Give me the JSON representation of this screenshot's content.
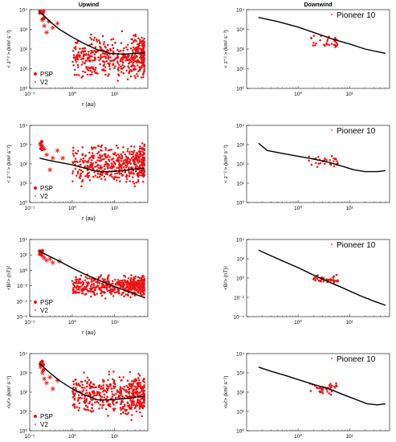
{
  "colors": {
    "data": "#ee1111",
    "model": "#000000"
  },
  "columns": {
    "left_title": "Upwind",
    "right_title": "Downwind"
  },
  "chart_data": [
    {
      "id": "upwind-zplus",
      "type": "scatter",
      "title": "Upwind",
      "xlabel": "r (au)",
      "ylabel": "< z⁺² > (km² s⁻²)",
      "xscale": "log",
      "yscale": "log",
      "xlim": [
        0.1,
        60
      ],
      "ylim": [
        1,
        10000
      ],
      "xticks": [
        {
          "v": 0.1,
          "label": "10⁻¹"
        },
        {
          "v": 1,
          "label": "10⁰"
        },
        {
          "v": 10,
          "label": "10¹"
        }
      ],
      "yticks": [
        {
          "v": 1,
          "label": "10⁰"
        },
        {
          "v": 10,
          "label": "10¹"
        },
        {
          "v": 100,
          "label": "10²"
        },
        {
          "v": 1000,
          "label": "10³"
        },
        {
          "v": 10000,
          "label": "10⁴"
        }
      ],
      "legend": {
        "placement": "bottom-left",
        "entries": [
          "PSP",
          "V2"
        ]
      },
      "model_curve": [
        [
          0.17,
          8000
        ],
        [
          0.3,
          2500
        ],
        [
          0.5,
          1000
        ],
        [
          1,
          400
        ],
        [
          2,
          180
        ],
        [
          4,
          90
        ],
        [
          8,
          60
        ],
        [
          16,
          55
        ],
        [
          30,
          60
        ],
        [
          50,
          65
        ]
      ],
      "psp": {
        "r_range": [
          0.17,
          0.22
        ],
        "y_range": [
          3000,
          10000
        ],
        "count": 6
      },
      "v2": [
        [
          0.2,
          3000
        ],
        [
          0.22,
          1500
        ],
        [
          0.25,
          700
        ],
        [
          0.28,
          2500
        ],
        [
          0.35,
          1200
        ],
        [
          0.45,
          2000
        ]
      ],
      "scatter_cloud": {
        "r_range": [
          1,
          50
        ],
        "y_range": [
          1,
          1500
        ],
        "count": 500
      }
    },
    {
      "id": "downwind-zplus",
      "type": "scatter",
      "title": "Downwind",
      "xlabel": "",
      "ylabel": "< z⁺² > (km² s⁻²)",
      "xscale": "log",
      "yscale": "log",
      "xlim": [
        0.1,
        60
      ],
      "ylim": [
        1,
        10000
      ],
      "xticks": [
        {
          "v": 1,
          "label": "10⁰"
        },
        {
          "v": 10,
          "label": "10¹"
        }
      ],
      "yticks": [
        {
          "v": 1,
          "label": "10⁰"
        },
        {
          "v": 10,
          "label": "10¹"
        },
        {
          "v": 100,
          "label": "10²"
        },
        {
          "v": 1000,
          "label": "10³"
        },
        {
          "v": 10000,
          "label": "10⁴"
        }
      ],
      "legend": {
        "placement": "top-right",
        "entries": [
          "Pioneer 10"
        ]
      },
      "model_curve": [
        [
          0.17,
          4000
        ],
        [
          0.4,
          2500
        ],
        [
          1,
          1300
        ],
        [
          2,
          700
        ],
        [
          5,
          300
        ],
        [
          10,
          180
        ],
        [
          20,
          100
        ],
        [
          50,
          60
        ]
      ],
      "scatter_cloud": {
        "r_range": [
          1.5,
          6
        ],
        "y_range": [
          60,
          700
        ],
        "count": 35
      }
    },
    {
      "id": "upwind-zminus",
      "type": "scatter",
      "title": "",
      "xlabel": "r (au)",
      "ylabel": "< z⁻² > (km² s⁻²)",
      "xscale": "log",
      "yscale": "log",
      "xlim": [
        0.1,
        60
      ],
      "ylim": [
        1,
        10000
      ],
      "xticks": [
        {
          "v": 0.1,
          "label": "10⁻¹"
        },
        {
          "v": 1,
          "label": "10⁰"
        },
        {
          "v": 10,
          "label": "10¹"
        }
      ],
      "yticks": [
        {
          "v": 1,
          "label": "10⁰"
        },
        {
          "v": 10,
          "label": "10¹"
        },
        {
          "v": 100,
          "label": "10²"
        },
        {
          "v": 1000,
          "label": "10³"
        },
        {
          "v": 10000,
          "label": "10⁴"
        }
      ],
      "legend": {
        "placement": "bottom-left",
        "entries": [
          "PSP",
          "V2"
        ]
      },
      "model_curve": [
        [
          0.17,
          200
        ],
        [
          0.3,
          150
        ],
        [
          0.5,
          120
        ],
        [
          1,
          90
        ],
        [
          2,
          60
        ],
        [
          4,
          40
        ],
        [
          8,
          40
        ],
        [
          16,
          45
        ],
        [
          30,
          55
        ],
        [
          50,
          60
        ]
      ],
      "psp": {
        "r_range": [
          0.17,
          0.2
        ],
        "y_range": [
          300,
          1500
        ],
        "count": 5
      },
      "v2": [
        [
          0.18,
          1000
        ],
        [
          0.2,
          800
        ],
        [
          0.22,
          600
        ],
        [
          0.25,
          300
        ],
        [
          0.3,
          50
        ],
        [
          0.35,
          200
        ],
        [
          0.45,
          500
        ],
        [
          0.6,
          200
        ]
      ],
      "scatter_cloud": {
        "r_range": [
          1,
          50
        ],
        "y_range": [
          3,
          3000
        ],
        "count": 500
      }
    },
    {
      "id": "downwind-zminus",
      "type": "scatter",
      "title": "",
      "xlabel": "",
      "ylabel": "< z⁻² > (km² s⁻²)",
      "xscale": "log",
      "yscale": "log",
      "xlim": [
        0.1,
        60
      ],
      "ylim": [
        1,
        10000
      ],
      "xticks": [
        {
          "v": 1,
          "label": "10⁰"
        },
        {
          "v": 10,
          "label": "10¹"
        }
      ],
      "yticks": [
        {
          "v": 1,
          "label": "10⁰"
        },
        {
          "v": 10,
          "label": "10¹"
        },
        {
          "v": 100,
          "label": "10²"
        },
        {
          "v": 1000,
          "label": "10³"
        },
        {
          "v": 10000,
          "label": "10⁴"
        }
      ],
      "legend": {
        "placement": "top-right",
        "entries": [
          "Pioneer 10"
        ]
      },
      "model_curve": [
        [
          0.17,
          1200
        ],
        [
          0.25,
          500
        ],
        [
          0.5,
          350
        ],
        [
          1,
          250
        ],
        [
          2,
          180
        ],
        [
          4,
          120
        ],
        [
          8,
          70
        ],
        [
          12,
          50
        ],
        [
          20,
          40
        ],
        [
          35,
          40
        ],
        [
          50,
          45
        ]
      ],
      "scatter_cloud": {
        "r_range": [
          1.5,
          6
        ],
        "y_range": [
          50,
          400
        ],
        "count": 35
      }
    },
    {
      "id": "upwind-b2",
      "type": "scatter",
      "title": "",
      "xlabel": "r (au)",
      "ylabel": "<B²> (nT)²",
      "xscale": "log",
      "yscale": "log",
      "xlim": [
        0.1,
        60
      ],
      "ylim": [
        1e-06,
        10000
      ],
      "xticks": [
        {
          "v": 0.1,
          "label": "10⁻¹"
        },
        {
          "v": 1,
          "label": "10⁰"
        },
        {
          "v": 10,
          "label": "10¹"
        }
      ],
      "yticks": [
        {
          "v": 1e-06,
          "label": "10⁻⁶"
        },
        {
          "v": 0.0001,
          "label": "10⁻⁴"
        },
        {
          "v": 0.01,
          "label": "10⁻²"
        },
        {
          "v": 1,
          "label": "10⁰"
        },
        {
          "v": 100,
          "label": "10²"
        },
        {
          "v": 10000,
          "label": "10⁴"
        }
      ],
      "legend": {
        "placement": "bottom-left",
        "entries": [
          "PSP",
          "V2"
        ]
      },
      "model_curve": [
        [
          0.17,
          300
        ],
        [
          0.3,
          60
        ],
        [
          0.5,
          15
        ],
        [
          1,
          2
        ],
        [
          2,
          0.3
        ],
        [
          4,
          0.06
        ],
        [
          8,
          0.012
        ],
        [
          16,
          0.003
        ],
        [
          30,
          0.0008
        ],
        [
          50,
          0.0003
        ]
      ],
      "psp": {
        "r_range": [
          0.17,
          0.2
        ],
        "y_range": [
          100,
          500
        ],
        "count": 5
      },
      "v2": [
        [
          0.2,
          80
        ],
        [
          0.22,
          40
        ],
        [
          0.25,
          20
        ],
        [
          0.3,
          30
        ],
        [
          0.35,
          10
        ],
        [
          0.5,
          15
        ]
      ],
      "scatter_cloud": {
        "r_range": [
          1,
          50
        ],
        "y_range": [
          0.0001,
          1
        ],
        "count": 500
      }
    },
    {
      "id": "downwind-b2",
      "type": "scatter",
      "title": "",
      "xlabel": "",
      "ylabel": "<B²> (nT)²",
      "xscale": "log",
      "yscale": "log",
      "xlim": [
        0.1,
        60
      ],
      "ylim": [
        0.0001,
        10000
      ],
      "xticks": [
        {
          "v": 1,
          "label": "10⁰"
        },
        {
          "v": 10,
          "label": "10¹"
        }
      ],
      "yticks": [
        {
          "v": 0.0001,
          "label": "10⁻⁴"
        },
        {
          "v": 0.01,
          "label": "10⁻²"
        },
        {
          "v": 1,
          "label": "10⁰"
        },
        {
          "v": 100,
          "label": "10²"
        },
        {
          "v": 10000,
          "label": "10⁴"
        }
      ],
      "legend": {
        "placement": "top-right",
        "entries": [
          "Pioneer 10"
        ]
      },
      "model_curve": [
        [
          0.17,
          800
        ],
        [
          0.3,
          200
        ],
        [
          0.5,
          60
        ],
        [
          1,
          12
        ],
        [
          2,
          2
        ],
        [
          4,
          0.4
        ],
        [
          8,
          0.08
        ],
        [
          16,
          0.015
        ],
        [
          30,
          0.004
        ],
        [
          50,
          0.0015
        ]
      ],
      "scatter_cloud": {
        "r_range": [
          1.8,
          6
        ],
        "y_range": [
          0.2,
          3
        ],
        "count": 40
      }
    },
    {
      "id": "upwind-u2",
      "type": "scatter",
      "title": "",
      "xlabel": "r (au)",
      "ylabel": "<u²> (km² s⁻²)",
      "xscale": "log",
      "yscale": "log",
      "xlim": [
        0.1,
        60
      ],
      "ylim": [
        1,
        10000
      ],
      "xticks": [
        {
          "v": 0.1,
          "label": "10⁻¹"
        },
        {
          "v": 1,
          "label": "10⁰"
        },
        {
          "v": 10,
          "label": "10¹"
        }
      ],
      "yticks": [
        {
          "v": 1,
          "label": "10⁰"
        },
        {
          "v": 10,
          "label": "10¹"
        },
        {
          "v": 100,
          "label": "10²"
        },
        {
          "v": 1000,
          "label": "10³"
        },
        {
          "v": 10000,
          "label": "10⁴"
        }
      ],
      "legend": {
        "placement": "bottom-left",
        "entries": [
          "PSP",
          "V2"
        ]
      },
      "model_curve": [
        [
          0.17,
          3000
        ],
        [
          0.3,
          1000
        ],
        [
          0.5,
          400
        ],
        [
          1,
          150
        ],
        [
          2,
          70
        ],
        [
          4,
          40
        ],
        [
          8,
          40
        ],
        [
          16,
          45
        ],
        [
          30,
          55
        ],
        [
          50,
          60
        ]
      ],
      "psp": {
        "r_range": [
          0.17,
          0.22
        ],
        "y_range": [
          1000,
          4000
        ],
        "count": 6
      },
      "v2": [
        [
          0.18,
          2000
        ],
        [
          0.2,
          1000
        ],
        [
          0.22,
          500
        ],
        [
          0.25,
          300
        ],
        [
          0.3,
          600
        ],
        [
          0.35,
          150
        ],
        [
          0.45,
          400
        ]
      ],
      "scatter_cloud": {
        "r_range": [
          1,
          50
        ],
        "y_range": [
          2,
          3000
        ],
        "count": 500
      }
    },
    {
      "id": "downwind-u2",
      "type": "scatter",
      "title": "",
      "xlabel": "",
      "ylabel": "<u²> (km² s⁻²)",
      "xscale": "log",
      "yscale": "log",
      "xlim": [
        0.1,
        60
      ],
      "ylim": [
        1,
        10000
      ],
      "xticks": [
        {
          "v": 1,
          "label": "10⁰"
        },
        {
          "v": 10,
          "label": "10¹"
        }
      ],
      "yticks": [
        {
          "v": 1,
          "label": "10⁰"
        },
        {
          "v": 10,
          "label": "10¹"
        },
        {
          "v": 100,
          "label": "10²"
        },
        {
          "v": 1000,
          "label": "10³"
        },
        {
          "v": 10000,
          "label": "10⁴"
        }
      ],
      "legend": {
        "placement": "top-right",
        "entries": [
          "Pioneer 10"
        ]
      },
      "model_curve": [
        [
          0.17,
          2000
        ],
        [
          0.3,
          1200
        ],
        [
          0.6,
          700
        ],
        [
          1,
          450
        ],
        [
          2,
          250
        ],
        [
          4,
          150
        ],
        [
          8,
          70
        ],
        [
          14,
          40
        ],
        [
          22,
          25
        ],
        [
          35,
          22
        ],
        [
          50,
          25
        ]
      ],
      "scatter_cloud": {
        "r_range": [
          1.5,
          6
        ],
        "y_range": [
          50,
          500
        ],
        "count": 40
      }
    }
  ]
}
